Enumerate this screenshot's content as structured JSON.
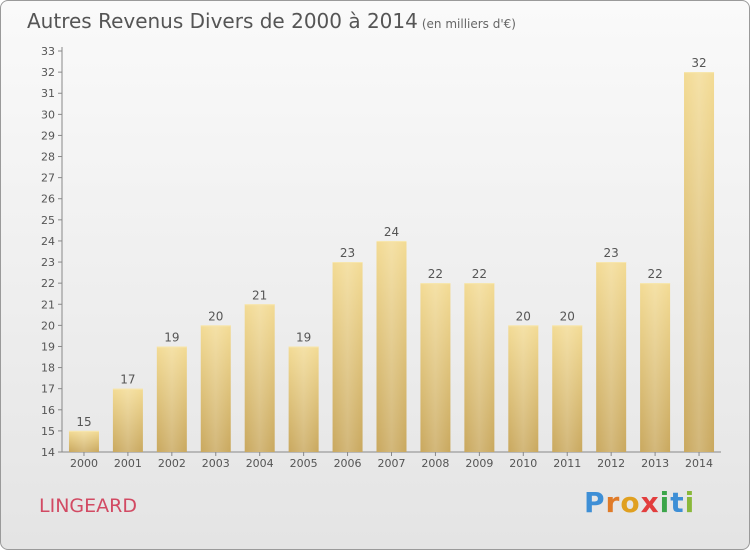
{
  "title": "Autres Revenus Divers de 2000 à 2014",
  "subtitle": "(en milliers d'€)",
  "brand_label": "LINGEARD",
  "logo_text": "Proxiti",
  "chart_data": {
    "type": "bar",
    "title": "Autres Revenus Divers de 2000 à 2014",
    "subtitle": "(en milliers d'€)",
    "categories": [
      "2000",
      "2001",
      "2002",
      "2003",
      "2004",
      "2005",
      "2006",
      "2007",
      "2008",
      "2009",
      "2010",
      "2011",
      "2012",
      "2013",
      "2014"
    ],
    "values": [
      15,
      17,
      19,
      20,
      21,
      19,
      23,
      24,
      22,
      22,
      20,
      20,
      23,
      22,
      32
    ],
    "ylim": [
      14,
      33
    ],
    "yticks": [
      14,
      15,
      16,
      17,
      18,
      19,
      20,
      21,
      22,
      23,
      24,
      25,
      26,
      27,
      28,
      29,
      30,
      31,
      32,
      33
    ],
    "grid": false,
    "bar_color": "#e9cf86",
    "legend": "none"
  }
}
